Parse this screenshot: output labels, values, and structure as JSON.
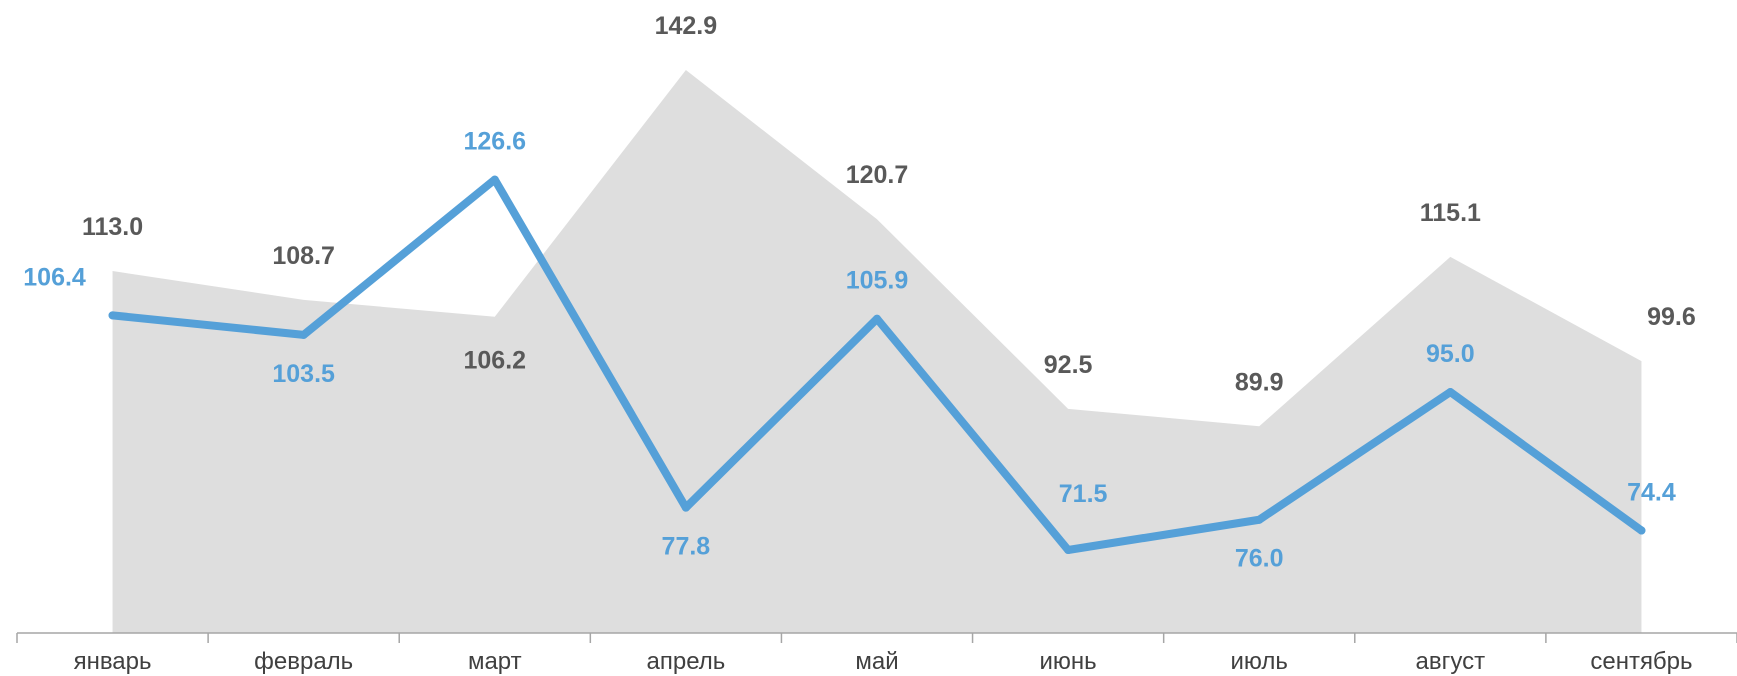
{
  "chart_data": {
    "type": "area",
    "categories": [
      "январь",
      "февраль",
      "март",
      "апрель",
      "май",
      "июнь",
      "июль",
      "август",
      "сентябрь"
    ],
    "series": [
      {
        "kind": "area",
        "values": [
          113.0,
          108.7,
          106.2,
          142.9,
          120.7,
          92.5,
          89.9,
          115.1,
          99.6
        ],
        "labels": [
          "113.0",
          "108.7",
          "106.2",
          "142.9",
          "120.7",
          "92.5",
          "89.9",
          "115.1",
          "99.6"
        ],
        "color": "#dedede",
        "label_color": "#595959"
      },
      {
        "kind": "line",
        "values": [
          106.4,
          103.5,
          126.6,
          77.8,
          105.9,
          71.5,
          76.0,
          95.0,
          74.4
        ],
        "labels": [
          "106.4",
          "103.5",
          "126.6",
          "77.8",
          "105.9",
          "71.5",
          "76.0",
          "95.0",
          "74.4"
        ],
        "color": "#55a0d8",
        "label_color": "#55a0d8"
      }
    ],
    "ylim": [
      20,
      150
    ],
    "grid": false,
    "legend": "none",
    "axis_color": "#a6a6a6"
  }
}
